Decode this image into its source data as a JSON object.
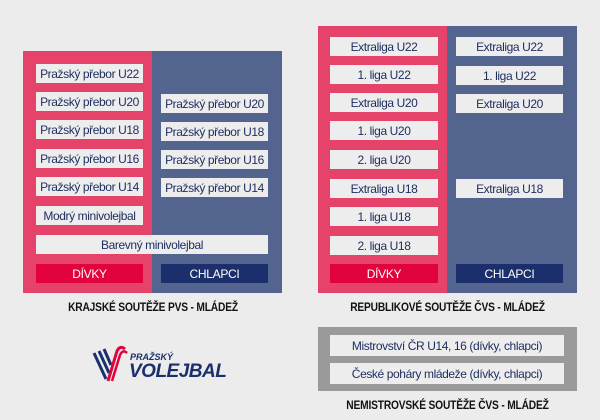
{
  "krajske": {
    "title": "KRAJSKÉ SOUTĚŽE PVS - MLÁDEŽ",
    "girls": [
      "Pražský přebor U22",
      "Pražský přebor U20",
      "Pražský přebor U18",
      "Pražský přebor U16",
      "Pražský přebor U14",
      "Modrý minivolejbal"
    ],
    "boys": [
      "Pražský přebor U20",
      "Pražský přebor U18",
      "Pražský přebor U16",
      "Pražský přebor U14"
    ],
    "shared": "Barevný minivolejbal",
    "girls_label": "DÍVKY",
    "boys_label": "CHLAPCI"
  },
  "republikove": {
    "title": "REPUBLIKOVÉ SOUTĚŽE ČVS - MLÁDEŽ",
    "girls": [
      "Extraliga U22",
      "1. liga U22",
      "Extraliga U20",
      "1. liga U20",
      "2. liga U20",
      "Extraliga U18",
      "1. liga U18",
      "2. liga U18"
    ],
    "boys": [
      "Extraliga U22",
      "1. liga U22",
      "Extraliga U20",
      "Extraliga U18"
    ],
    "girls_label": "DÍVKY",
    "boys_label": "CHLAPCI"
  },
  "nemistrovske": {
    "title": "NEMISTROVSKÉ SOUTĚŽE ČVS - MLÁDEŽ",
    "items": [
      "Mistrovství ČR U14, 16 (dívky, chlapci)",
      "České poháry mládeže (dívky, chlapci)"
    ]
  },
  "logo": {
    "line1": "PRAŽSKÝ",
    "line2": "VOLEJBAL"
  },
  "colors": {
    "pink": "#e6436b",
    "blue": "#53658f",
    "girls": "#e2033c",
    "boys": "#1b2f6c",
    "gray": "#9a9a9a"
  }
}
